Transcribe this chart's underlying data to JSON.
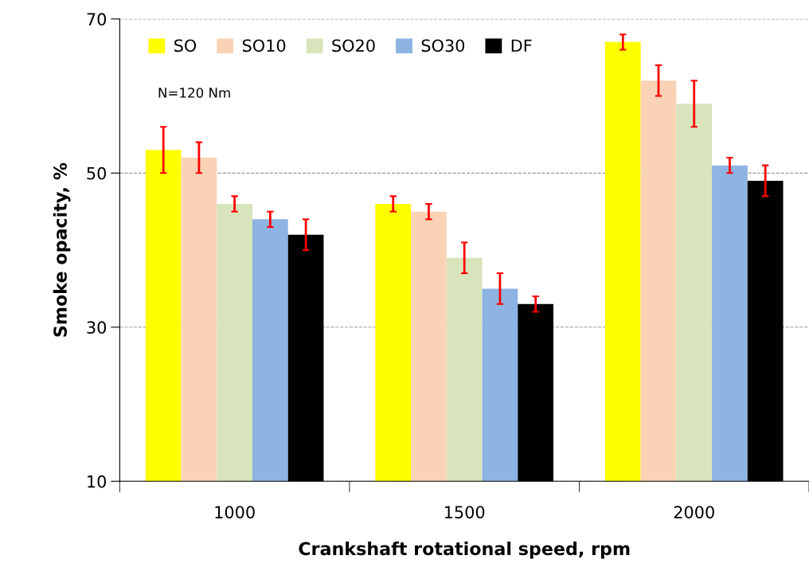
{
  "chart_data": {
    "type": "bar",
    "xlabel": "Crankshaft rotational speed, rpm",
    "ylabel": "Smoke opacity, %",
    "categories": [
      "1000",
      "1500",
      "2000"
    ],
    "series": [
      {
        "name": "SO",
        "color": "#ffff00",
        "values": [
          53,
          46,
          67
        ],
        "errors": [
          3,
          1,
          1
        ]
      },
      {
        "name": "SO10",
        "color": "#fad3b6",
        "values": [
          52,
          45,
          62
        ],
        "errors": [
          2,
          1,
          2
        ]
      },
      {
        "name": "SO20",
        "color": "#d8e4bc",
        "values": [
          46,
          39,
          59
        ],
        "errors": [
          1,
          2,
          3
        ]
      },
      {
        "name": "SO30",
        "color": "#8db4e2",
        "values": [
          44,
          35,
          51
        ],
        "errors": [
          1,
          2,
          1
        ]
      },
      {
        "name": "DF",
        "color": "#000000",
        "values": [
          42,
          33,
          49
        ],
        "errors": [
          2,
          1,
          2
        ]
      }
    ],
    "ylim": [
      10,
      70
    ],
    "yticks": [
      10,
      30,
      50,
      70
    ],
    "grid": "y",
    "legend": "top left",
    "annotations": [
      "N=120 Nm"
    ]
  }
}
